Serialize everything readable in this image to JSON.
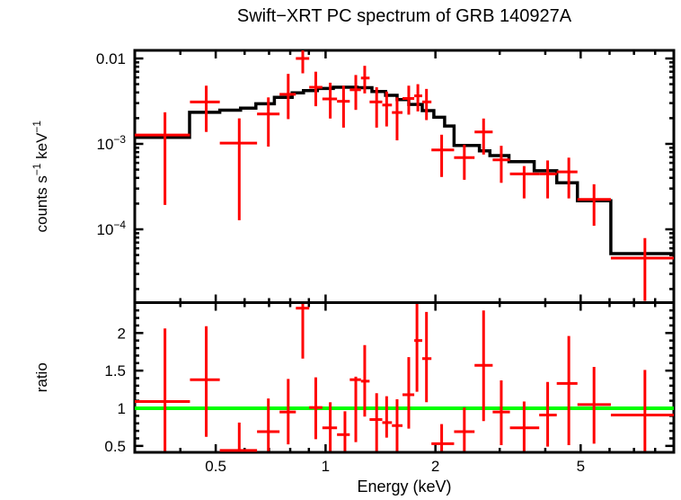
{
  "title": "Swift−XRT PC spectrum of GRB 140927A",
  "colors": {
    "data": "#ff0000",
    "model": "#000000",
    "unity_line": "#00ff00",
    "frame": "#000000",
    "background": "#ffffff"
  },
  "axes": {
    "x": {
      "label": "Energy (keV)",
      "scale": "log",
      "range_kev": [
        0.3,
        9.0
      ],
      "major_ticks": [
        0.5,
        1,
        2,
        5
      ],
      "major_tick_labels": [
        "0.5",
        "1",
        "2",
        "5"
      ],
      "minor_ticks": [
        0.3,
        0.4,
        0.6,
        0.7,
        0.8,
        0.9,
        3,
        4,
        6,
        7,
        8
      ]
    },
    "y_top": {
      "label": "counts s^-1 keV^-1",
      "scale": "log",
      "range": [
        1.4e-05,
        0.0125
      ],
      "major_ticks": [
        0.01,
        0.001,
        0.0001
      ],
      "major_tick_labels": [
        "0.01",
        "10^-3",
        "10^-4"
      ]
    },
    "y_ratio": {
      "label": "ratio",
      "scale": "linear",
      "range": [
        0.415,
        2.4
      ],
      "major_ticks": [
        0.5,
        1,
        1.5,
        2
      ],
      "major_tick_labels": [
        "0.5",
        "1",
        "1.5",
        "2"
      ],
      "minor_tick_step": 0.1
    }
  },
  "chart_data": [
    {
      "type": "scatter",
      "name": "spectrum-panel",
      "title": "Swift−XRT PC spectrum of GRB 140927A",
      "xlabel": "Energy (keV)",
      "ylabel": "counts s^-1 keV^-1",
      "x_scale": "log",
      "y_scale": "log",
      "xlim": [
        0.3,
        9.0
      ],
      "ylim": [
        1.4e-05,
        0.0125
      ],
      "legend": "none",
      "grid": false,
      "series": [
        {
          "name": "observed-counts",
          "style": "cross-errorbar",
          "color": "#ff0000",
          "point_format": [
            "E_keV",
            "E_lo",
            "E_hi",
            "value",
            "err_lo",
            "err_hi"
          ],
          "points": [
            [
              0.363,
              0.3,
              0.425,
              0.00127,
              0.000193,
              0.00234
            ],
            [
              0.471,
              0.425,
              0.513,
              0.0031,
              0.00138,
              0.0048
            ],
            [
              0.58,
              0.513,
              0.649,
              0.00102,
              0.000128,
              0.00199
            ],
            [
              0.697,
              0.649,
              0.748,
              0.00224,
              0.00093,
              0.0035
            ],
            [
              0.79,
              0.748,
              0.829,
              0.0038,
              0.00195,
              0.0066
            ],
            [
              0.866,
              0.829,
              0.902,
              0.01,
              0.0067,
              0.0128
            ],
            [
              0.94,
              0.902,
              0.98,
              0.0046,
              0.00276,
              0.007
            ],
            [
              1.03,
              0.98,
              1.075,
              0.00336,
              0.00198,
              0.0052
            ],
            [
              1.12,
              1.075,
              1.165,
              0.00315,
              0.00155,
              0.0048
            ],
            [
              1.21,
              1.165,
              1.25,
              0.0043,
              0.0025,
              0.0064
            ],
            [
              1.28,
              1.25,
              1.32,
              0.0059,
              0.0039,
              0.0082
            ],
            [
              1.38,
              1.32,
              1.43,
              0.0031,
              0.00155,
              0.0046
            ],
            [
              1.47,
              1.43,
              1.52,
              0.00285,
              0.0016,
              0.0041
            ],
            [
              1.57,
              1.52,
              1.625,
              0.00233,
              0.0011,
              0.0035
            ],
            [
              1.69,
              1.625,
              1.75,
              0.0034,
              0.0022,
              0.0048
            ],
            [
              1.79,
              1.75,
              1.84,
              0.00365,
              0.0024,
              0.005
            ],
            [
              1.89,
              1.84,
              1.95,
              0.0031,
              0.0019,
              0.0044
            ],
            [
              2.08,
              1.95,
              2.25,
              0.00085,
              0.00041,
              0.00128
            ],
            [
              2.4,
              2.25,
              2.56,
              0.00069,
              0.00038,
              0.00098
            ],
            [
              2.71,
              2.56,
              2.87,
              0.00138,
              0.00075,
              0.00198
            ],
            [
              3.03,
              2.87,
              3.2,
              0.00065,
              0.00035,
              0.00095
            ],
            [
              3.5,
              3.2,
              3.85,
              0.000445,
              0.00023,
              0.00055
            ],
            [
              4.06,
              3.85,
              4.3,
              0.000445,
              0.00023,
              0.00064
            ],
            [
              4.64,
              4.3,
              4.9,
              0.00047,
              0.00023,
              0.00069
            ],
            [
              5.44,
              4.9,
              6.05,
              0.000224,
              0.00011,
              0.000337
            ],
            [
              7.5,
              6.05,
              9.0,
              4.6e-05,
              1.45e-05,
              7.9e-05
            ]
          ]
        },
        {
          "name": "folded-model",
          "style": "step",
          "color": "#000000",
          "step_format": [
            "E_lo",
            "E_hi",
            "value"
          ],
          "steps": [
            [
              0.3,
              0.424,
              0.00119
            ],
            [
              0.424,
              0.513,
              0.00234
            ],
            [
              0.513,
              0.585,
              0.00248
            ],
            [
              0.585,
              0.644,
              0.00262
            ],
            [
              0.644,
              0.724,
              0.00295
            ],
            [
              0.724,
              0.81,
              0.0035
            ],
            [
              0.81,
              0.87,
              0.00395
            ],
            [
              0.87,
              0.95,
              0.0042
            ],
            [
              0.95,
              1.05,
              0.00445
            ],
            [
              1.05,
              1.22,
              0.0046
            ],
            [
              1.22,
              1.34,
              0.00455
            ],
            [
              1.34,
              1.46,
              0.0041
            ],
            [
              1.46,
              1.57,
              0.0037
            ],
            [
              1.57,
              1.69,
              0.0033
            ],
            [
              1.69,
              1.84,
              0.0029
            ],
            [
              1.84,
              1.98,
              0.00245
            ],
            [
              1.98,
              2.12,
              0.00205
            ],
            [
              2.12,
              2.25,
              0.00162
            ],
            [
              2.25,
              2.64,
              0.00096
            ],
            [
              2.64,
              2.82,
              0.00083
            ],
            [
              2.82,
              3.18,
              0.00073
            ],
            [
              3.18,
              3.73,
              0.00062
            ],
            [
              3.73,
              4.3,
              0.000485
            ],
            [
              4.3,
              4.9,
              0.00035
            ],
            [
              4.9,
              6.05,
              0.000216
            ],
            [
              6.05,
              9.0,
              5.2e-05
            ]
          ]
        }
      ]
    },
    {
      "type": "scatter",
      "name": "ratio-panel",
      "xlabel": "Energy (keV)",
      "ylabel": "ratio",
      "x_scale": "log",
      "y_scale": "linear",
      "xlim": [
        0.3,
        9.0
      ],
      "ylim": [
        0.415,
        2.4
      ],
      "legend": "none",
      "grid": false,
      "series": [
        {
          "name": "data-to-model-ratio",
          "style": "cross-errorbar",
          "color": "#ff0000",
          "point_format": [
            "E_keV",
            "E_lo",
            "E_hi",
            "ratio",
            "err_lo",
            "err_hi"
          ],
          "points": [
            [
              0.363,
              0.3,
              0.425,
              1.09,
              0.36,
              2.06
            ],
            [
              0.471,
              0.425,
              0.513,
              1.38,
              0.62,
              2.09
            ],
            [
              0.58,
              0.513,
              0.649,
              0.44,
              0.3,
              0.81
            ],
            [
              0.697,
              0.649,
              0.748,
              0.69,
              0.37,
              1.13
            ],
            [
              0.79,
              0.748,
              0.829,
              0.95,
              0.52,
              1.39
            ],
            [
              0.866,
              0.829,
              0.902,
              2.33,
              1.66,
              2.6
            ],
            [
              0.94,
              0.902,
              0.98,
              1.01,
              0.59,
              1.41
            ],
            [
              1.03,
              0.98,
              1.075,
              0.74,
              0.39,
              1.08
            ],
            [
              1.13,
              1.075,
              1.165,
              0.65,
              0.35,
              0.96
            ],
            [
              1.21,
              1.165,
              1.25,
              1.38,
              0.55,
              1.42
            ],
            [
              1.28,
              1.25,
              1.32,
              1.36,
              0.89,
              1.84
            ],
            [
              1.38,
              1.32,
              1.43,
              0.85,
              0.42,
              1.2
            ],
            [
              1.47,
              1.43,
              1.52,
              0.81,
              0.61,
              1.16
            ],
            [
              1.57,
              1.52,
              1.625,
              0.77,
              0.41,
              1.12
            ],
            [
              1.69,
              1.625,
              1.75,
              1.18,
              0.73,
              1.68
            ],
            [
              1.78,
              1.75,
              1.84,
              1.9,
              1.22,
              2.6
            ],
            [
              1.89,
              1.84,
              1.95,
              1.66,
              1.08,
              2.28
            ],
            [
              2.08,
              1.95,
              2.25,
              0.53,
              0.3,
              0.79
            ],
            [
              2.4,
              2.25,
              2.56,
              0.69,
              0.38,
              1.01
            ],
            [
              2.71,
              2.56,
              2.87,
              1.57,
              0.83,
              2.3
            ],
            [
              3.03,
              2.87,
              3.2,
              0.95,
              0.51,
              1.37
            ],
            [
              3.5,
              3.2,
              3.85,
              0.74,
              0.37,
              1.09
            ],
            [
              4.06,
              3.85,
              4.3,
              0.91,
              0.49,
              1.35
            ],
            [
              4.64,
              4.3,
              4.9,
              1.33,
              0.51,
              1.96
            ],
            [
              5.44,
              4.9,
              6.05,
              1.05,
              0.53,
              1.55
            ],
            [
              7.5,
              6.05,
              9.0,
              0.91,
              0.35,
              1.51
            ]
          ]
        },
        {
          "name": "unity-line",
          "style": "hline",
          "color": "#00ff00",
          "y": 1.0
        }
      ]
    }
  ]
}
